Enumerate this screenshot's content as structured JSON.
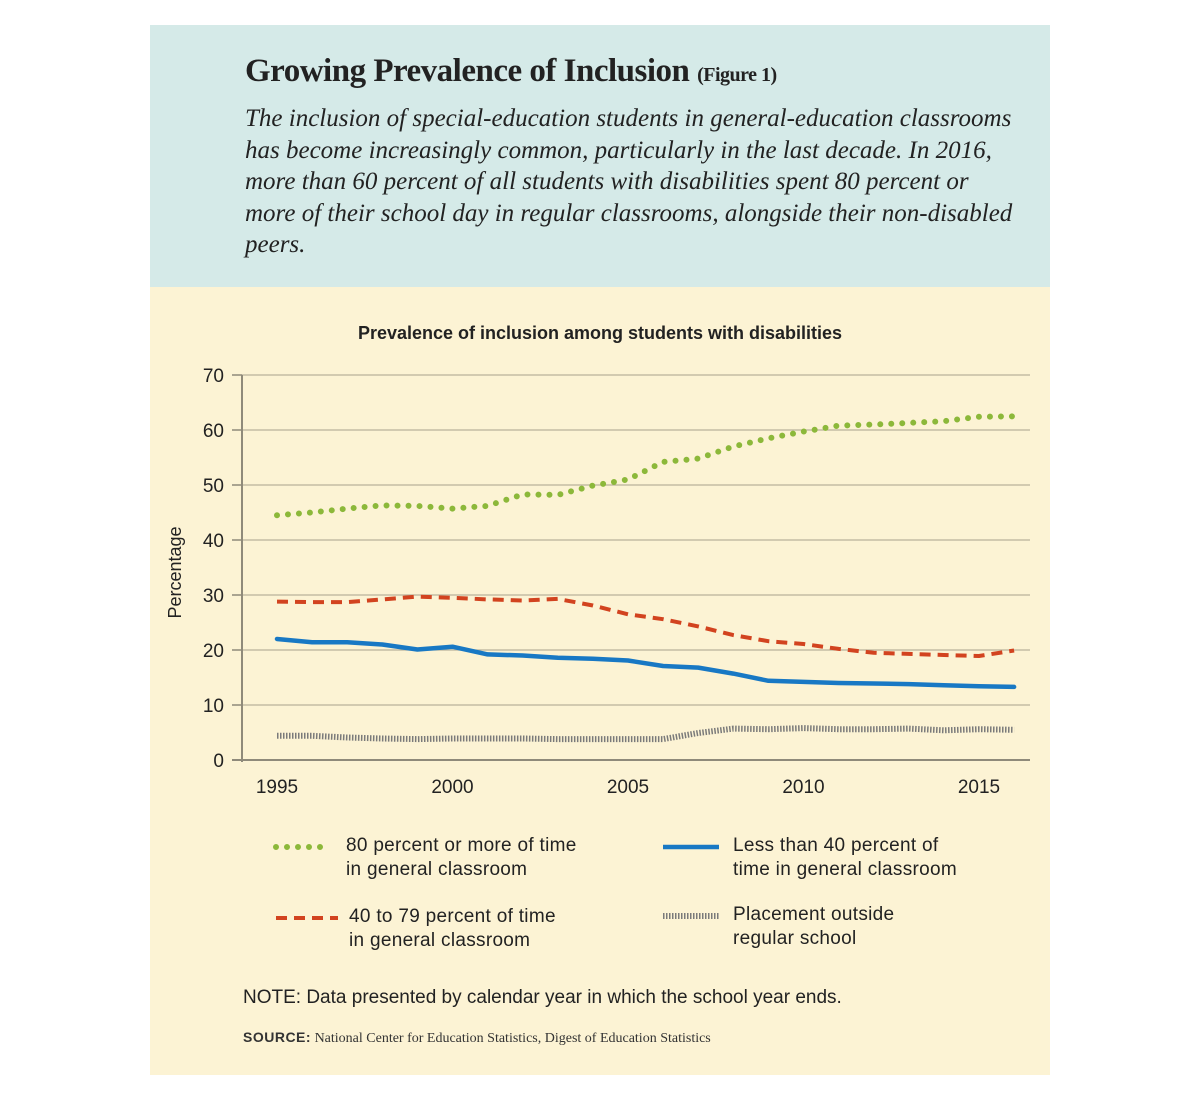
{
  "header": {
    "title": "Growing Prevalence of Inclusion",
    "figure_label": "(Figure 1)",
    "description": "The inclusion of special-education students in general-education classrooms has become increasingly common, particularly in the last decade. In 2016, more than 60 percent of all students with disabilities spent 80 percent or more of their school day in regular classrooms, alongside their non-disabled peers."
  },
  "chart_data": {
    "type": "line",
    "title": "Prevalence of inclusion among students with disabilities",
    "xlabel": "",
    "ylabel": "Percentage",
    "xlim": [
      1994,
      2016.5
    ],
    "ylim": [
      0,
      70
    ],
    "x_ticks": [
      1995,
      2000,
      2005,
      2010,
      2015
    ],
    "y_ticks": [
      0,
      10,
      20,
      30,
      40,
      50,
      60,
      70
    ],
    "grid": "horizontal",
    "x": [
      1995,
      1996,
      1997,
      1998,
      1999,
      2000,
      2001,
      2002,
      2003,
      2004,
      2005,
      2006,
      2007,
      2008,
      2009,
      2010,
      2011,
      2012,
      2013,
      2014,
      2015,
      2016
    ],
    "series": [
      {
        "name": "80 percent or more of time\nin general classroom",
        "style": "dotted",
        "color": "#8cb83a",
        "values": [
          44.5,
          45.0,
          45.7,
          46.3,
          46.2,
          45.7,
          46.2,
          48.3,
          48.2,
          49.9,
          51.0,
          54.2,
          54.8,
          57.0,
          58.5,
          59.7,
          60.8,
          61.0,
          61.3,
          61.6,
          62.4,
          62.5
        ]
      },
      {
        "name": "40 to 79 percent of time\nin general classroom",
        "style": "dashed",
        "color": "#d2431f",
        "values": [
          28.8,
          28.7,
          28.7,
          29.2,
          29.7,
          29.5,
          29.2,
          29.0,
          29.3,
          28.1,
          26.5,
          25.6,
          24.3,
          22.7,
          21.6,
          21.1,
          20.2,
          19.5,
          19.3,
          19.1,
          18.9,
          19.9
        ]
      },
      {
        "name": "Less than 40 percent of\ntime in general classroom",
        "style": "solid",
        "color": "#1878c4",
        "values": [
          22.0,
          21.4,
          21.4,
          21.0,
          20.1,
          20.6,
          19.2,
          19.0,
          18.6,
          18.4,
          18.1,
          17.1,
          16.8,
          15.7,
          14.4,
          14.2,
          14.0,
          13.9,
          13.8,
          13.6,
          13.4,
          13.3
        ]
      },
      {
        "name": "Placement outside\nregular school",
        "style": "hatched",
        "color": "#7a7a7a",
        "values": [
          4.4,
          4.4,
          4.1,
          3.9,
          3.8,
          3.9,
          3.9,
          3.9,
          3.8,
          3.8,
          3.8,
          3.8,
          4.9,
          5.7,
          5.6,
          5.8,
          5.6,
          5.6,
          5.7,
          5.4,
          5.6,
          5.5
        ]
      }
    ],
    "legend_position": "bottom"
  },
  "footer": {
    "note": "NOTE: Data presented by calendar year in which the school year ends.",
    "source_label": "SOURCE:",
    "source_text": "National Center for Education Statistics, Digest of Education Statistics"
  }
}
